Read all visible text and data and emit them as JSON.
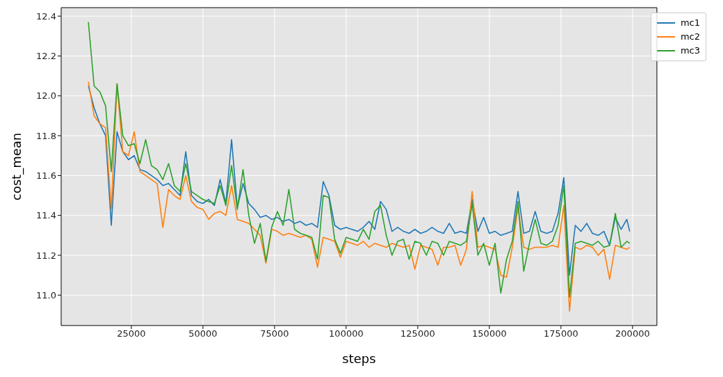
{
  "chart_data": {
    "type": "line",
    "xlabel": "steps",
    "ylabel": "cost_mean",
    "x": [
      10000,
      12000,
      14000,
      16000,
      18000,
      20000,
      22000,
      24000,
      26000,
      28000,
      30000,
      32000,
      34000,
      36000,
      38000,
      40000,
      42000,
      44000,
      46000,
      48000,
      50000,
      52000,
      54000,
      56000,
      58000,
      60000,
      62000,
      64000,
      66000,
      68000,
      70000,
      72000,
      74000,
      76000,
      78000,
      80000,
      82000,
      84000,
      86000,
      88000,
      90000,
      92000,
      94000,
      96000,
      98000,
      100000,
      102000,
      104000,
      106000,
      108000,
      110000,
      112000,
      114000,
      116000,
      118000,
      120000,
      122000,
      124000,
      126000,
      128000,
      130000,
      132000,
      134000,
      136000,
      138000,
      140000,
      142000,
      144000,
      146000,
      148000,
      150000,
      152000,
      154000,
      156000,
      158000,
      160000,
      162000,
      164000,
      166000,
      168000,
      170000,
      172000,
      174000,
      176000,
      178000,
      180000,
      182000,
      184000,
      186000,
      188000,
      190000,
      192000,
      194000,
      196000,
      198000,
      199000
    ],
    "series": [
      {
        "name": "mc1",
        "color": "#1f77b4",
        "values": [
          12.05,
          11.94,
          11.86,
          11.8,
          11.35,
          11.82,
          11.72,
          11.68,
          11.7,
          11.63,
          11.62,
          11.6,
          11.58,
          11.55,
          11.56,
          11.53,
          11.5,
          11.72,
          11.5,
          11.47,
          11.46,
          11.48,
          11.45,
          11.58,
          11.46,
          11.78,
          11.44,
          11.56,
          11.46,
          11.43,
          11.39,
          11.4,
          11.38,
          11.39,
          11.37,
          11.38,
          11.36,
          11.37,
          11.35,
          11.36,
          11.34,
          11.57,
          11.5,
          11.35,
          11.33,
          11.34,
          11.33,
          11.32,
          11.34,
          11.37,
          11.33,
          11.47,
          11.43,
          11.32,
          11.34,
          11.32,
          11.31,
          11.33,
          11.31,
          11.32,
          11.34,
          11.32,
          11.31,
          11.36,
          11.31,
          11.32,
          11.31,
          11.48,
          11.32,
          11.39,
          11.31,
          11.32,
          11.3,
          11.31,
          11.32,
          11.52,
          11.31,
          11.32,
          11.42,
          11.32,
          11.31,
          11.32,
          11.41,
          11.59,
          11.1,
          11.35,
          11.32,
          11.36,
          11.31,
          11.3,
          11.32,
          11.25,
          11.39,
          11.33,
          11.38,
          11.32
        ]
      },
      {
        "name": "mc2",
        "color": "#ff7f0e",
        "values": [
          12.07,
          11.9,
          11.86,
          11.84,
          11.43,
          12.06,
          11.72,
          11.7,
          11.82,
          11.62,
          11.6,
          11.58,
          11.56,
          11.34,
          11.53,
          11.5,
          11.48,
          11.6,
          11.47,
          11.44,
          11.43,
          11.38,
          11.41,
          11.42,
          11.4,
          11.55,
          11.38,
          11.37,
          11.36,
          11.33,
          11.3,
          11.16,
          11.33,
          11.32,
          11.3,
          11.31,
          11.3,
          11.29,
          11.3,
          11.28,
          11.14,
          11.29,
          11.28,
          11.27,
          11.19,
          11.27,
          11.26,
          11.25,
          11.27,
          11.24,
          11.26,
          11.25,
          11.24,
          11.26,
          11.25,
          11.24,
          11.25,
          11.13,
          11.25,
          11.24,
          11.23,
          11.15,
          11.24,
          11.24,
          11.25,
          11.15,
          11.23,
          11.52,
          11.24,
          11.25,
          11.24,
          11.23,
          11.1,
          11.09,
          11.24,
          11.44,
          11.24,
          11.23,
          11.24,
          11.24,
          11.24,
          11.25,
          11.24,
          11.45,
          10.92,
          11.24,
          11.23,
          11.25,
          11.24,
          11.2,
          11.23,
          11.08,
          11.25,
          11.24,
          11.23,
          11.24
        ]
      },
      {
        "name": "mc3",
        "color": "#2ca02c",
        "values": [
          12.37,
          12.05,
          12.02,
          11.95,
          11.62,
          12.06,
          11.8,
          11.75,
          11.76,
          11.66,
          11.78,
          11.65,
          11.63,
          11.58,
          11.66,
          11.55,
          11.52,
          11.66,
          11.52,
          11.5,
          11.48,
          11.47,
          11.46,
          11.55,
          11.45,
          11.65,
          11.43,
          11.63,
          11.4,
          11.26,
          11.36,
          11.17,
          11.34,
          11.42,
          11.35,
          11.53,
          11.33,
          11.31,
          11.3,
          11.29,
          11.18,
          11.5,
          11.49,
          11.28,
          11.21,
          11.29,
          11.28,
          11.27,
          11.33,
          11.28,
          11.42,
          11.45,
          11.3,
          11.2,
          11.27,
          11.28,
          11.18,
          11.27,
          11.26,
          11.2,
          11.27,
          11.26,
          11.2,
          11.27,
          11.26,
          11.25,
          11.27,
          11.46,
          11.2,
          11.26,
          11.15,
          11.26,
          11.01,
          11.18,
          11.27,
          11.47,
          11.12,
          11.26,
          11.38,
          11.26,
          11.25,
          11.27,
          11.35,
          11.55,
          10.99,
          11.26,
          11.27,
          11.26,
          11.25,
          11.27,
          11.24,
          11.25,
          11.41,
          11.24,
          11.27,
          11.26
        ]
      }
    ],
    "xlim": [
      500,
      208500
    ],
    "xticks": [
      25000,
      50000,
      75000,
      100000,
      125000,
      150000,
      175000,
      200000
    ],
    "ylim": [
      10.8475,
      12.4425
    ],
    "yticks": [
      {
        "value": 11,
        "label": "11.0"
      },
      11.2,
      11.4,
      11.6,
      11.8,
      {
        "value": 12,
        "label": "12.0"
      },
      12.2,
      12.4
    ],
    "grid": true,
    "legend": "top right",
    "marker": "none",
    "line_style": "solid"
  }
}
